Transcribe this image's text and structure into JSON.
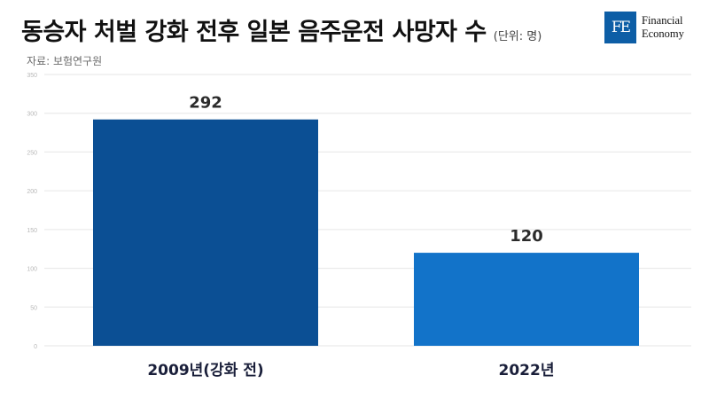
{
  "header": {
    "title": "동승자 처벌 강화 전후 일본 음주운전 사망자 수",
    "unit": "(단위: 명)",
    "source": "자료: 보험연구원"
  },
  "logo": {
    "mark": "FE",
    "line1": "Financial",
    "line2": "Economy",
    "color": "#0d5ea6"
  },
  "chart_data": {
    "type": "bar",
    "categories": [
      "2009년(강화 전)",
      "2022년"
    ],
    "values": [
      292,
      120
    ],
    "value_labels": [
      "292",
      "120"
    ],
    "bar_colors": [
      "#0b4f94",
      "#1273c9"
    ],
    "ylim": [
      0,
      350
    ],
    "yticks": [
      0,
      50,
      100,
      150,
      200,
      250,
      300,
      350
    ],
    "grid": true,
    "legend": "none"
  }
}
